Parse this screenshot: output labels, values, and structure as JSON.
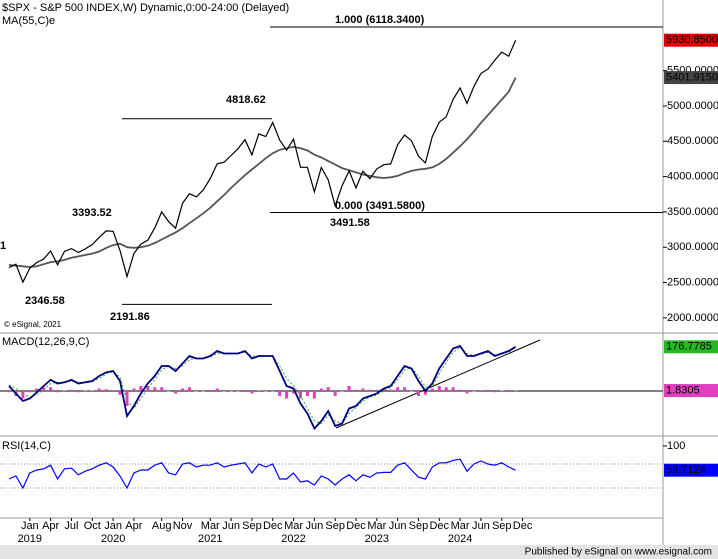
{
  "chart_data": [
    {
      "type": "line",
      "title": "$SPX - S&P 500 INDEX,W) Dynamic,0:00-24:00 (Delayed)",
      "copyright": "© eSignal, 2021",
      "x": [
        "2018-10",
        "2018-11",
        "2018-12",
        "2019-01",
        "2019-02",
        "2019-03",
        "2019-04",
        "2019-05",
        "2019-06",
        "2019-07",
        "2019-08",
        "2019-09",
        "2019-10",
        "2019-11",
        "2019-12",
        "2020-01",
        "2020-02",
        "2020-03",
        "2020-04",
        "2020-05",
        "2020-06",
        "2020-07",
        "2020-08",
        "2020-09",
        "2020-10",
        "2020-11",
        "2020-12",
        "2021-01",
        "2021-02",
        "2021-03",
        "2021-04",
        "2021-05",
        "2021-06",
        "2021-07",
        "2021-08",
        "2021-09",
        "2021-10",
        "2021-11",
        "2021-12",
        "2022-01",
        "2022-02",
        "2022-03",
        "2022-04",
        "2022-05",
        "2022-06",
        "2022-07",
        "2022-08",
        "2022-09",
        "2022-10",
        "2022-11",
        "2022-12",
        "2023-01",
        "2023-02",
        "2023-03",
        "2023-04",
        "2023-05",
        "2023-06",
        "2023-07",
        "2023-08",
        "2023-09",
        "2023-10",
        "2023-11",
        "2023-12",
        "2024-01",
        "2024-02",
        "2024-03",
        "2024-04",
        "2024-05",
        "2024-06",
        "2024-07",
        "2024-08",
        "2024-09",
        "2024-10",
        "2024-11"
      ],
      "series": [
        {
          "color": "#000000",
          "box_color": "#e00000",
          "last_label": "5930.8500",
          "values": [
            2711,
            2760,
            2507,
            2704,
            2784,
            2834,
            2946,
            2752,
            2942,
            2980,
            2926,
            2977,
            3038,
            3141,
            3231,
            3226,
            2954,
            2585,
            2912,
            3044,
            3100,
            3271,
            3500,
            3363,
            3270,
            3622,
            3756,
            3714,
            3811,
            3973,
            4181,
            4204,
            4298,
            4395,
            4523,
            4308,
            4605,
            4567,
            4766,
            4516,
            4374,
            4530,
            4132,
            4132,
            3785,
            4130,
            3955,
            3586,
            3872,
            4080,
            3840,
            4077,
            3970,
            4109,
            4169,
            4180,
            4450,
            4589,
            4508,
            4288,
            4194,
            4568,
            4770,
            4846,
            5096,
            5254,
            5036,
            5278,
            5460,
            5522,
            5648,
            5762,
            5705,
            5930.85
          ]
        },
        {
          "name": "MA(55,C)e",
          "color": "#555555",
          "box_color": "#444444",
          "last_label": "5401.9150",
          "values": [
            2750,
            2740,
            2730,
            2720,
            2730,
            2760,
            2790,
            2800,
            2820,
            2850,
            2870,
            2890,
            2910,
            2940,
            2990,
            3030,
            3050,
            3000,
            2990,
            3000,
            3020,
            3060,
            3110,
            3160,
            3210,
            3270,
            3340,
            3410,
            3480,
            3560,
            3650,
            3740,
            3840,
            3930,
            4020,
            4100,
            4180,
            4260,
            4330,
            4380,
            4400,
            4420,
            4400,
            4370,
            4310,
            4270,
            4220,
            4170,
            4120,
            4090,
            4060,
            4030,
            4010,
            3990,
            3980,
            3990,
            4010,
            4050,
            4080,
            4100,
            4110,
            4130,
            4180,
            4250,
            4340,
            4430,
            4530,
            4640,
            4760,
            4870,
            4980,
            5090,
            5200,
            5401.915
          ]
        }
      ],
      "ylim": [
        1800,
        6500
      ],
      "yticks": [
        {
          "value": 2000,
          "label": "2000.0000"
        },
        {
          "value": 2500,
          "label": "2500.0000"
        },
        {
          "value": 3000,
          "label": "3000.0000"
        },
        {
          "value": 3500,
          "label": "3500.0000"
        },
        {
          "value": 4000,
          "label": "4000.0000"
        },
        {
          "value": 4500,
          "label": "4500.0000"
        },
        {
          "value": 5000,
          "label": "5000.0000"
        },
        {
          "value": 5500,
          "label": "5500.0000"
        }
      ],
      "annotations": [
        {
          "text": "1.000 (6118.3400)",
          "value": 6118.34
        },
        {
          "text": "0.000 (3491.5800)",
          "value": 3491.58
        },
        {
          "text": "4818.62",
          "value": 4818.62
        },
        {
          "text": "2191.86",
          "value": 2191.86
        },
        {
          "text": "3393.52"
        },
        {
          "text": "2346.58"
        },
        {
          "text": "3491.58"
        },
        {
          "text": "1"
        }
      ],
      "xticks": [
        {
          "value": "2019-01",
          "label": "Jan"
        },
        {
          "value": "2019-04",
          "label": "Apr"
        },
        {
          "value": "2019-07",
          "label": "Jul"
        },
        {
          "value": "2019-10",
          "label": "Oct"
        },
        {
          "value": "2020-01",
          "label": "Jan"
        },
        {
          "value": "2020-04",
          "label": "Apr"
        },
        {
          "value": "2020-08",
          "label": "Aug"
        },
        {
          "value": "2020-11",
          "label": "Nov"
        },
        {
          "value": "2021-03",
          "label": "Mar"
        },
        {
          "value": "2021-06",
          "label": "Jun"
        },
        {
          "value": "2021-09",
          "label": "Sep"
        },
        {
          "value": "2021-12",
          "label": "Dec"
        },
        {
          "value": "2022-03",
          "label": "Mar"
        },
        {
          "value": "2022-06",
          "label": "Jun"
        },
        {
          "value": "2022-09",
          "label": "Sep"
        },
        {
          "value": "2022-12",
          "label": "Dec"
        },
        {
          "value": "2023-03",
          "label": "Mar"
        },
        {
          "value": "2023-06",
          "label": "Jun"
        },
        {
          "value": "2023-09",
          "label": "Sep"
        },
        {
          "value": "2023-12",
          "label": "Dec"
        },
        {
          "value": "2024-03",
          "label": "Mar"
        },
        {
          "value": "2024-06",
          "label": "Jun"
        },
        {
          "value": "2024-09",
          "label": "Sep"
        },
        {
          "value": "2024-12",
          "label": "Dec"
        }
      ],
      "year_labels": [
        {
          "value": "2019-01",
          "label": "2019"
        },
        {
          "value": "2020-01",
          "label": "2020"
        },
        {
          "value": "2021-03",
          "label": "2021"
        },
        {
          "value": "2022-03",
          "label": "2022"
        },
        {
          "value": "2023-03",
          "label": "2023"
        },
        {
          "value": "2024-03",
          "label": "2024"
        }
      ]
    },
    {
      "type": "macd",
      "title": "MACD(12,26,9,C)",
      "ylim": [
        -176,
        228
      ],
      "series": [
        {
          "color": "#000080",
          "box_color": "#22bb22",
          "last_label": "176.7785",
          "values": [
            20,
            -10,
            -40,
            -30,
            -5,
            20,
            45,
            30,
            35,
            45,
            30,
            35,
            40,
            60,
            75,
            80,
            40,
            -100,
            -60,
            -10,
            30,
            60,
            100,
            100,
            80,
            110,
            140,
            130,
            130,
            140,
            160,
            150,
            150,
            150,
            160,
            130,
            140,
            140,
            140,
            80,
            20,
            10,
            -50,
            -90,
            -150,
            -120,
            -80,
            -140,
            -130,
            -70,
            -60,
            -30,
            -20,
            -10,
            10,
            20,
            60,
            100,
            90,
            40,
            0,
            30,
            90,
            130,
            170,
            180,
            140,
            140,
            150,
            160,
            140,
            150,
            160,
            176.7785
          ]
        },
        {
          "color": "#33aa33",
          "values": [
            25,
            10,
            -10,
            -25,
            -15,
            5,
            30,
            35,
            33,
            40,
            35,
            33,
            38,
            50,
            68,
            77,
            55,
            -40,
            -70,
            -30,
            10,
            45,
            85,
            100,
            90,
            100,
            125,
            132,
            130,
            136,
            150,
            152,
            150,
            150,
            156,
            140,
            138,
            140,
            140,
            100,
            50,
            20,
            -20,
            -70,
            -120,
            -130,
            -95,
            -120,
            -130,
            -90,
            -65,
            -40,
            -25,
            -15,
            0,
            15,
            45,
            85,
            92,
            60,
            15,
            20,
            70,
            115,
            155,
            175,
            150,
            142,
            147,
            155,
            145,
            148,
            156,
            174.948
          ]
        },
        {
          "color": "#e040c0",
          "box_color": "#e040c0",
          "last_label": "1.8305",
          "values": [
            -5,
            -20,
            -30,
            -5,
            10,
            15,
            15,
            -5,
            2,
            5,
            -5,
            2,
            2,
            10,
            7,
            3,
            -15,
            -60,
            10,
            20,
            20,
            15,
            15,
            0,
            -10,
            10,
            15,
            -2,
            0,
            4,
            10,
            -2,
            0,
            0,
            4,
            -10,
            2,
            0,
            0,
            -20,
            -30,
            -10,
            -30,
            -20,
            -30,
            10,
            15,
            -20,
            0,
            20,
            5,
            10,
            5,
            5,
            10,
            5,
            15,
            15,
            -2,
            -20,
            -15,
            10,
            20,
            15,
            15,
            5,
            -10,
            -2,
            3,
            5,
            -5,
            2,
            4,
            1.8305
          ]
        }
      ]
    },
    {
      "type": "line",
      "title": "RSI(14,C)",
      "ylim": [
        -20,
        115
      ],
      "yticks": [
        100
      ],
      "levels": [
        70,
        30
      ],
      "series": [
        {
          "color": "#0000ff",
          "box_color": "#0000ff",
          "last_label": "59.7124",
          "values": [
            45,
            50,
            30,
            55,
            60,
            62,
            68,
            45,
            62,
            63,
            52,
            58,
            62,
            68,
            72,
            65,
            50,
            30,
            55,
            60,
            60,
            68,
            72,
            55,
            52,
            70,
            72,
            65,
            68,
            68,
            72,
            65,
            68,
            70,
            72,
            55,
            70,
            65,
            70,
            45,
            45,
            55,
            40,
            42,
            35,
            50,
            45,
            35,
            45,
            52,
            42,
            52,
            48,
            55,
            56,
            56,
            68,
            72,
            60,
            48,
            45,
            65,
            72,
            72,
            76,
            78,
            58,
            70,
            75,
            70,
            68,
            72,
            65,
            59.7124
          ]
        }
      ]
    }
  ],
  "footer": "Published by eSignal on www.esignal.com"
}
